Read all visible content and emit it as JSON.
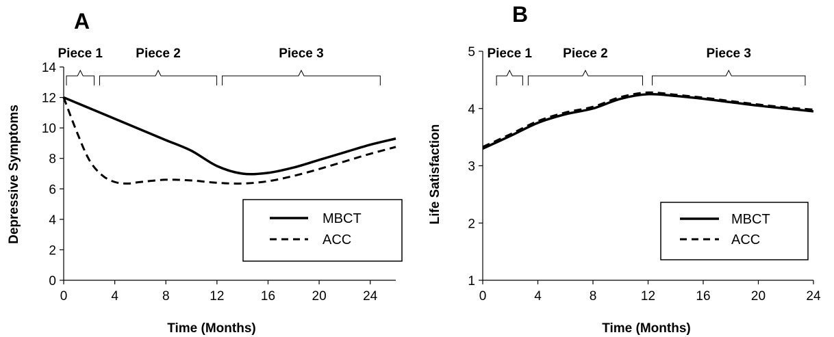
{
  "chart_data": [
    {
      "panel_label": "A",
      "type": "line",
      "xlabel": "Time (Months)",
      "ylabel": "Depressive Symptoms",
      "xlim": [
        0,
        26
      ],
      "ylim": [
        0,
        14
      ],
      "x_ticks": [
        0,
        4,
        8,
        12,
        16,
        20,
        24
      ],
      "y_ticks": [
        0,
        2,
        4,
        6,
        8,
        10,
        12,
        14
      ],
      "grid": false,
      "legend_position": "bottom-right",
      "pieces": [
        {
          "label": "Piece 1",
          "range": [
            0,
            2.6
          ]
        },
        {
          "label": "Piece 2",
          "range": [
            2.6,
            12.2
          ]
        },
        {
          "label": "Piece 3",
          "range": [
            12.2,
            25
          ]
        }
      ],
      "series": [
        {
          "name": "MBCT",
          "style": "solid",
          "x": [
            0,
            2,
            4,
            6,
            8,
            10,
            12,
            14,
            16,
            18,
            20,
            22,
            24,
            26
          ],
          "y": [
            12,
            11.3,
            10.6,
            9.9,
            9.2,
            8.5,
            7.5,
            7.0,
            7.05,
            7.4,
            7.9,
            8.4,
            8.9,
            9.3
          ]
        },
        {
          "name": "ACC",
          "style": "dashed",
          "x": [
            0,
            1,
            2,
            3,
            4,
            5,
            6,
            8,
            10,
            12,
            14,
            16,
            18,
            20,
            22,
            24,
            26
          ],
          "y": [
            12,
            9.8,
            7.9,
            6.9,
            6.45,
            6.35,
            6.45,
            6.6,
            6.55,
            6.4,
            6.35,
            6.5,
            6.85,
            7.3,
            7.8,
            8.3,
            8.75
          ]
        }
      ]
    },
    {
      "panel_label": "B",
      "type": "line",
      "xlabel": "Time (Months)",
      "ylabel": "Life Satisfaction",
      "xlim": [
        0,
        24
      ],
      "ylim": [
        1,
        5
      ],
      "x_ticks": [
        0,
        4,
        8,
        12,
        16,
        20,
        24
      ],
      "y_ticks": [
        1,
        2,
        3,
        4,
        5
      ],
      "grid": false,
      "legend_position": "bottom-right",
      "pieces": [
        {
          "label": "Piece 1",
          "range": [
            0.8,
            3.1
          ]
        },
        {
          "label": "Piece 2",
          "range": [
            3.1,
            11.8
          ]
        },
        {
          "label": "Piece 3",
          "range": [
            12.1,
            23.6
          ]
        }
      ],
      "series": [
        {
          "name": "MBCT",
          "style": "solid",
          "x": [
            0,
            2,
            4,
            6,
            8,
            10,
            12,
            14,
            16,
            18,
            20,
            22,
            24
          ],
          "y": [
            3.3,
            3.52,
            3.75,
            3.9,
            4.0,
            4.17,
            4.25,
            4.22,
            4.17,
            4.11,
            4.05,
            4.0,
            3.95
          ]
        },
        {
          "name": "ACC",
          "style": "dashed",
          "x": [
            0,
            2,
            4,
            6,
            8,
            10,
            12,
            14,
            16,
            18,
            20,
            22,
            24
          ],
          "y": [
            3.33,
            3.55,
            3.78,
            3.93,
            4.03,
            4.2,
            4.28,
            4.24,
            4.19,
            4.13,
            4.07,
            4.02,
            3.98
          ]
        }
      ]
    }
  ]
}
